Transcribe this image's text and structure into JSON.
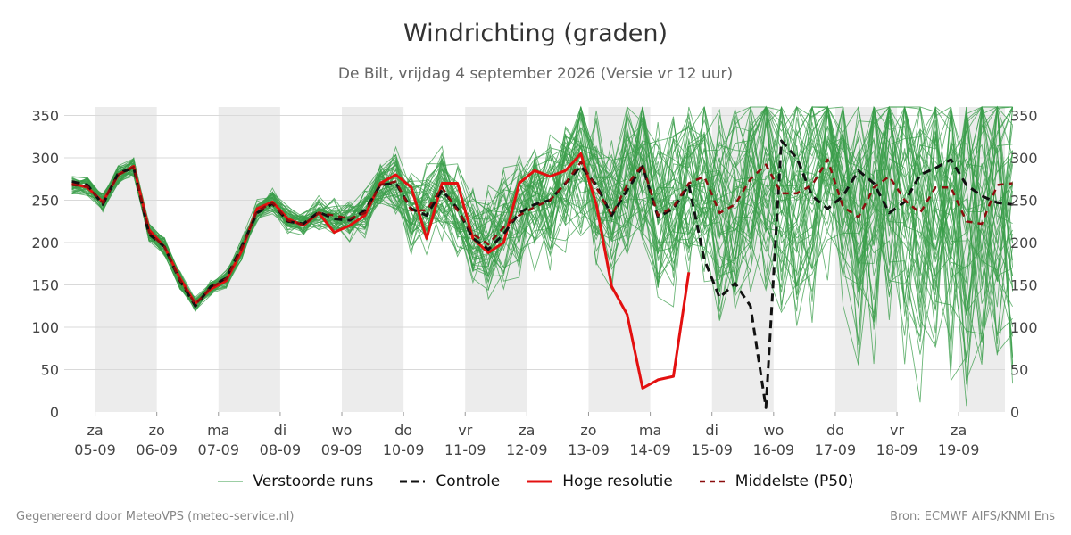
{
  "title": "Windrichting (graden)",
  "subtitle": "De Bilt, vrijdag  4 september 2026 (Versie vr 12 uur)",
  "footer_left": "Gegenereerd door MeteoVPS (meteo-service.nl)",
  "footer_right": "Bron: ECMWF AIFS/KNMI Ens",
  "legend": [
    {
      "label": "Verstoorde runs",
      "color": "#3a9e4a",
      "style": "thin"
    },
    {
      "label": "Controle",
      "color": "#111111",
      "style": "dashed"
    },
    {
      "label": "Hoge resolutie",
      "color": "#e31010",
      "style": "solid"
    },
    {
      "label": "Middelste (P50)",
      "color": "#8b0d0d",
      "style": "dashed"
    }
  ],
  "chart_data": {
    "type": "line",
    "ylim": [
      0,
      360
    ],
    "yticks": [
      0,
      50,
      100,
      150,
      200,
      250,
      300,
      350
    ],
    "x_start_day": 4.625,
    "x_step_days": 0.25,
    "xlim_days": [
      4.5,
      19.75
    ],
    "xticks": [
      {
        "day": 5,
        "dow": "za",
        "date": "05-09"
      },
      {
        "day": 6,
        "dow": "zo",
        "date": "06-09"
      },
      {
        "day": 7,
        "dow": "ma",
        "date": "07-09"
      },
      {
        "day": 8,
        "dow": "di",
        "date": "08-09"
      },
      {
        "day": 9,
        "dow": "wo",
        "date": "09-09"
      },
      {
        "day": 10,
        "dow": "do",
        "date": "10-09"
      },
      {
        "day": 11,
        "dow": "vr",
        "date": "11-09"
      },
      {
        "day": 12,
        "dow": "za",
        "date": "12-09"
      },
      {
        "day": 13,
        "dow": "zo",
        "date": "13-09"
      },
      {
        "day": 14,
        "dow": "ma",
        "date": "14-09"
      },
      {
        "day": 15,
        "dow": "di",
        "date": "15-09"
      },
      {
        "day": 16,
        "dow": "wo",
        "date": "16-09"
      },
      {
        "day": 17,
        "dow": "do",
        "date": "17-09"
      },
      {
        "day": 18,
        "dow": "vr",
        "date": "18-09"
      },
      {
        "day": 19,
        "dow": "za",
        "date": "19-09"
      }
    ],
    "shaded_days": [
      [
        5,
        6
      ],
      [
        7,
        8
      ],
      [
        9,
        10
      ],
      [
        11,
        12
      ],
      [
        13,
        14
      ],
      [
        15,
        16
      ],
      [
        17,
        18
      ],
      [
        19,
        20
      ]
    ],
    "series": [
      {
        "name": "Hoge resolutie",
        "color": "#e31010",
        "values": [
          270,
          265,
          248,
          280,
          290,
          215,
          195,
          158,
          128,
          145,
          155,
          190,
          240,
          248,
          228,
          220,
          235,
          212,
          220,
          232,
          270,
          280,
          265,
          205,
          270,
          270,
          205,
          188,
          200,
          270,
          285,
          278,
          285,
          305,
          245,
          148,
          115,
          28,
          38,
          42,
          165,
          null,
          null,
          null,
          null,
          null,
          null,
          null,
          null,
          null,
          null,
          null,
          null,
          null,
          null,
          null,
          null,
          null,
          null,
          null,
          null,
          null
        ]
      },
      {
        "name": "Controle",
        "color": "#111111",
        "values": [
          272,
          268,
          245,
          282,
          288,
          210,
          195,
          155,
          125,
          148,
          158,
          195,
          235,
          246,
          225,
          222,
          236,
          228,
          226,
          238,
          268,
          270,
          240,
          232,
          262,
          240,
          205,
          192,
          210,
          235,
          245,
          250,
          270,
          290,
          268,
          232,
          262,
          290,
          230,
          240,
          268,
          180,
          135,
          152,
          125,
          5,
          320,
          300,
          255,
          240,
          255,
          285,
          270,
          235,
          248,
          280,
          288,
          298,
          268,
          255,
          247,
          245
        ]
      },
      {
        "name": "Middelste (P50)",
        "color": "#8b0d0d",
        "values": [
          268,
          266,
          247,
          280,
          289,
          212,
          195,
          156,
          127,
          147,
          157,
          193,
          237,
          247,
          226,
          221,
          235,
          232,
          228,
          235,
          268,
          272,
          238,
          238,
          265,
          238,
          210,
          198,
          218,
          232,
          242,
          250,
          270,
          295,
          265,
          232,
          268,
          292,
          232,
          242,
          270,
          278,
          235,
          245,
          275,
          292,
          258,
          258,
          268,
          298,
          242,
          230,
          265,
          278,
          250,
          235,
          265,
          265,
          225,
          222,
          268,
          270
        ]
      }
    ]
  }
}
